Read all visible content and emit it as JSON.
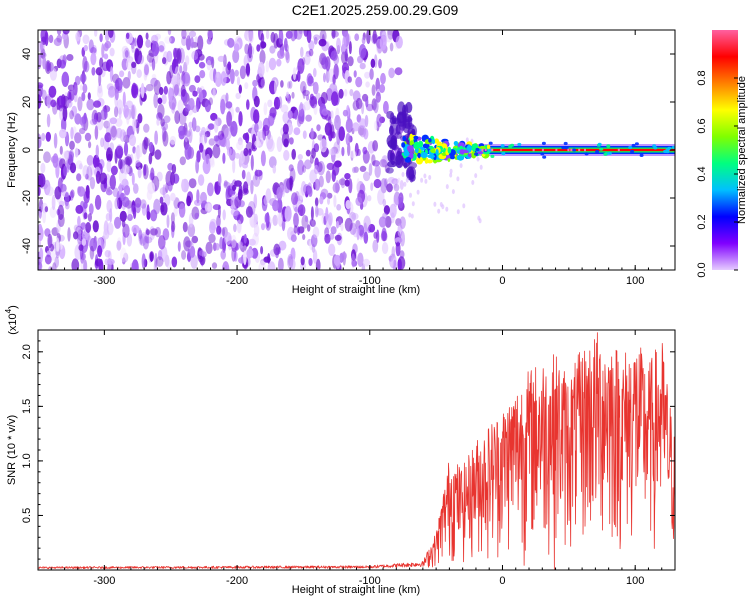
{
  "title": "C2E1.2025.259.00.29.G09",
  "chart_data": [
    {
      "type": "heatmap",
      "xlabel": "Height of straight line (km)",
      "ylabel": "Frequency (Hz)",
      "xlim": [
        -350,
        130
      ],
      "ylim": [
        -50,
        50
      ],
      "xticks": [
        -300,
        -200,
        -100,
        0,
        100
      ],
      "xtick_labels": [
        "-300",
        "-200",
        "-100",
        "0",
        "100"
      ],
      "yticks": [
        -40,
        -20,
        0,
        20,
        40
      ],
      "ytick_labels": [
        "-40",
        "-20",
        "0",
        "20",
        "40"
      ],
      "noise_region_x": [
        -350,
        -75
      ],
      "tone_frequency": 0,
      "tone_x_range": [
        -75,
        130
      ],
      "colorbar": {
        "label": "Normalized spectral amplitude",
        "range": [
          0,
          1
        ],
        "ticks": [
          0.0,
          0.2,
          0.4,
          0.6,
          0.8
        ],
        "tick_labels": [
          "0.0",
          "0.2",
          "0.4",
          "0.6",
          "0.8"
        ],
        "colors": [
          "#e6ccff",
          "#8000ff",
          "#0000ff",
          "#00c0ff",
          "#00ff80",
          "#80ff00",
          "#ffff00",
          "#ff8000",
          "#ff0000",
          "#ff60a0"
        ]
      },
      "colors": {
        "noise": "#7a1fe0",
        "tone": "#ff0000"
      }
    },
    {
      "type": "line",
      "xlabel": "Height of straight line (km)",
      "ylabel": "SNR (10 * v/v)",
      "y_multiplier": "(x10",
      "y_multiplier_exp": "4",
      "xlim": [
        -350,
        130
      ],
      "ylim": [
        0,
        2.2
      ],
      "xticks": [
        -300,
        -200,
        -100,
        0,
        100
      ],
      "xtick_labels": [
        "-300",
        "-200",
        "-100",
        "0",
        "100"
      ],
      "yticks": [
        0.5,
        1.0,
        1.5,
        2.0
      ],
      "ytick_labels": [
        "0.5",
        "1.0",
        "1.5",
        "2.0"
      ],
      "envelope": {
        "x": [
          -350,
          -100,
          -60,
          -50,
          -40,
          -30,
          -20,
          -10,
          0,
          10,
          20,
          30,
          40,
          50,
          60,
          70,
          80,
          90,
          100,
          110,
          120,
          130
        ],
        "y": [
          0.03,
          0.04,
          0.08,
          0.35,
          1.05,
          0.95,
          1.2,
          1.35,
          1.5,
          1.7,
          1.85,
          1.95,
          2.0,
          1.8,
          2.05,
          2.2,
          2.2,
          2.0,
          2.15,
          1.9,
          2.15,
          1.2
        ]
      },
      "colors": {
        "line": "#e8342f"
      }
    }
  ]
}
